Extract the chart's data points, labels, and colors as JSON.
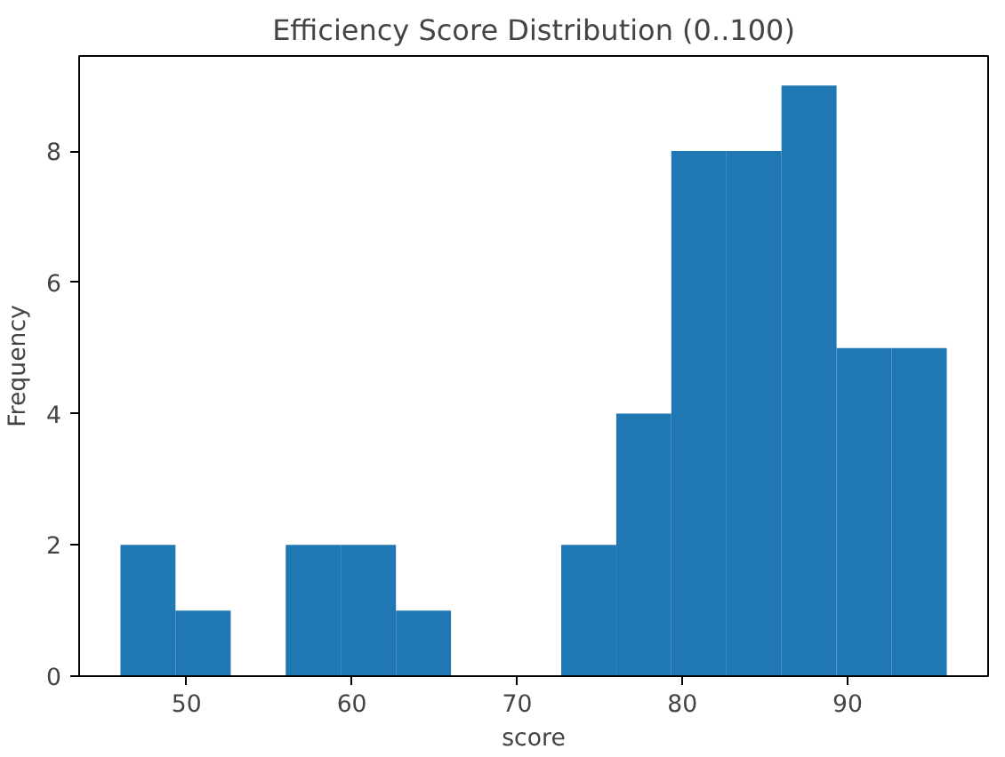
{
  "chart_data": {
    "type": "histogram",
    "title": "Efficiency Score Distribution (0..100)",
    "xlabel": "score",
    "ylabel": "Frequency",
    "bins": [
      46,
      49.33,
      52.67,
      56,
      59.33,
      62.67,
      66,
      69.33,
      72.67,
      76,
      79.33,
      82.67,
      86,
      89.33,
      92.67,
      96
    ],
    "values": [
      2,
      1,
      0,
      2,
      2,
      1,
      0,
      0,
      2,
      4,
      8,
      8,
      9,
      5,
      5
    ],
    "color": "#1f77b4",
    "xlim": [
      43.5,
      98.5
    ],
    "ylim": [
      0,
      9.45
    ],
    "xticks": [
      50,
      60,
      70,
      80,
      90
    ],
    "yticks": [
      0,
      2,
      4,
      6,
      8
    ],
    "grid": false
  }
}
